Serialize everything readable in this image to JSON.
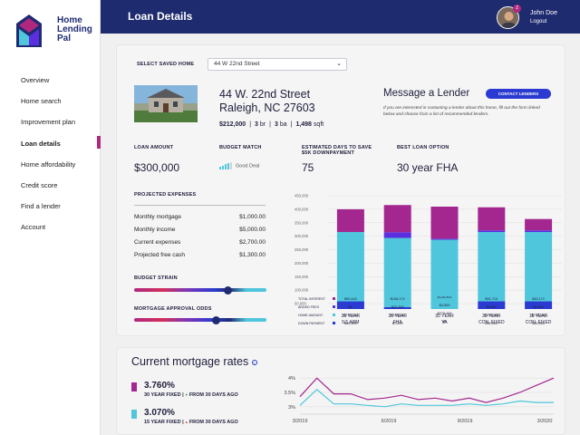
{
  "app": {
    "brand": [
      "Home",
      "Lending",
      "Pal"
    ]
  },
  "header": {
    "title": "Loan Details",
    "user_name": "John Doe",
    "logout": "Logout",
    "notifications": "2"
  },
  "sidebar": {
    "items": [
      {
        "label": "Overview",
        "active": false
      },
      {
        "label": "Home search",
        "active": false
      },
      {
        "label": "Improvement plan",
        "active": false
      },
      {
        "label": "Loan details",
        "active": true
      },
      {
        "label": "Home affordability",
        "active": false
      },
      {
        "label": "Credit score",
        "active": false
      },
      {
        "label": "Find a lender",
        "active": false
      },
      {
        "label": "Account",
        "active": false
      }
    ]
  },
  "home_select": {
    "label": "SELECT SAVED HOME",
    "value": "44 W 22nd Street"
  },
  "property": {
    "address_line1": "44 W. 22nd Street",
    "address_line2": "Raleigh, NC  27603",
    "price": "$212,000",
    "beds": "3",
    "beds_unit": "br",
    "baths": "3",
    "baths_unit": "ba",
    "sqft": "1,498",
    "sqft_unit": "sqft"
  },
  "message": {
    "title": "Message a Lender",
    "button": "CONTACT LENDERS",
    "description": "If you are interested in contacting a lender about this home, fill out the form linked below and choose from a list of recommended lenders."
  },
  "stats": {
    "loan_amount_label": "LOAN AMOUNT",
    "loan_amount": "$300,000",
    "budget_match_label": "BUDGET MATCH",
    "budget_match": "Good Deal",
    "days_label_1": "ESTIMATED DAYS TO SAVE",
    "days_label_2": "$5K DOWNPAYMENT",
    "days": "75",
    "best_option_label": "BEST LOAN OPTION",
    "best_option": "30 year FHA"
  },
  "expenses": {
    "title": "PROJECTED EXPENSES",
    "rows": [
      {
        "label": "Monthly mortgage",
        "value": "$1,000.00"
      },
      {
        "label": "Monthly income",
        "value": "$5,000.00"
      },
      {
        "label": "Current expenses",
        "value": "$2,700.00"
      },
      {
        "label": "Projected free cash",
        "value": "$1,300.00"
      }
    ]
  },
  "sliders": {
    "budget_strain_label": "BUDGET STRAIN",
    "budget_strain_level": 0.71,
    "approval_odds_label": "MORTGAGE APPROVAL ODDS",
    "approval_odds_level": 0.62
  },
  "colors": {
    "interest": "#a3278f",
    "fees": "#5b2ee0",
    "home": "#4fc6db",
    "down": "#2b3bd1",
    "brand": "#1e2b6f",
    "accent": "#b0287e"
  },
  "chart_data": {
    "type": "bar",
    "stacked": true,
    "y_ticks": [
      "450,000",
      "400,000",
      "350,000",
      "300,000",
      "250,000",
      "200,000",
      "150,000",
      "100,000",
      "50,000"
    ],
    "ylim": [
      0,
      450000
    ],
    "categories": [
      {
        "line1": "30 YEAR",
        "line2": "5/1 ARM"
      },
      {
        "line1": "30 YEAR",
        "line2": "FHA"
      },
      {
        "line1": "30 YEAR",
        "line2": "VA"
      },
      {
        "line1": "30 YEAR",
        "line2": "CON. FIXED"
      },
      {
        "line1": "15 YEAR",
        "line2": "CON. FIXED"
      }
    ],
    "series": [
      {
        "name": "TOTAL INTEREST",
        "values": [
          90440,
          108174,
          126903,
          91714,
          45171
        ]
      },
      {
        "name": "ADDED FEES",
        "values": [
          0,
          22293,
          4500,
          6500,
          6500
        ]
      },
      {
        "name": "HOME AMOUNT",
        "values": [
          275400,
          275400,
          275400,
          275400,
          275400
        ]
      },
      {
        "name": "DOWN PAYMENT",
        "values": [
          30500,
          7200,
          0,
          30500,
          30500
        ]
      }
    ],
    "table_text": [
      [
        "$90,440",
        "$108,174",
        "$126,903",
        "$91,714",
        "$45,171"
      ],
      [
        "$0",
        "$22,293",
        "$4,500",
        "$6,500",
        "$6,500"
      ],
      [
        "$275,400",
        "$275,400",
        "$275,400",
        "$275,400",
        "$275,400"
      ],
      [
        "$30,500",
        "$7,200",
        "$0",
        "$30,500",
        "$30,500"
      ]
    ],
    "grid": true,
    "legend": "bottom-left table"
  },
  "rates": {
    "title": "Current mortgage rates",
    "items": [
      {
        "rate": "3.760%",
        "label": "30 YEAR FIXED |",
        "trend": "FROM 30 DAYS AGO",
        "trend_dir": "down",
        "color": "#a3278f"
      },
      {
        "rate": "3.070%",
        "label": "15 YEAR FIXED |",
        "trend": "FROM 30 DAYS AGO",
        "trend_dir": "up",
        "color": "#4fc6db"
      }
    ],
    "chart": {
      "type": "line",
      "y_ticks": [
        "4%",
        "3.5%",
        "3%"
      ],
      "ylim": [
        2.9,
        4.1
      ],
      "x_ticks": [
        "3/2019",
        "6/2019",
        "9/2019",
        "3/2020"
      ],
      "series": [
        {
          "values": [
            3.35,
            4.0,
            3.45,
            3.45,
            3.25,
            3.3,
            3.4,
            3.25,
            3.3,
            3.2,
            3.3,
            3.15,
            3.3,
            3.5,
            3.75,
            4.0
          ]
        },
        {
          "values": [
            3.05,
            3.6,
            3.1,
            3.1,
            3.05,
            3.0,
            3.1,
            3.05,
            3.05,
            3.05,
            3.1,
            3.05,
            3.1,
            3.2,
            3.15,
            3.15
          ]
        }
      ]
    }
  }
}
